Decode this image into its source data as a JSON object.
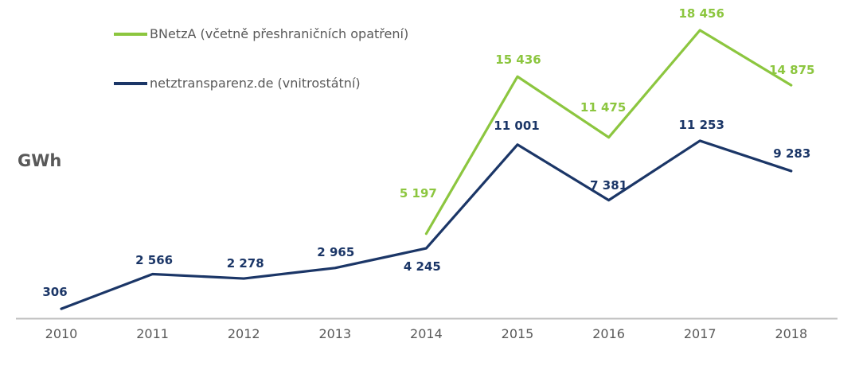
{
  "chart_data": {
    "type": "line",
    "title": "",
    "xlabel": "",
    "ylabel": "GWh",
    "categories": [
      "2010",
      "2011",
      "2012",
      "2013",
      "2014",
      "2015",
      "2016",
      "2017",
      "2018"
    ],
    "series": [
      {
        "key": "bnetza",
        "name": "BNetzA (včetně přeshraničních opatření)",
        "color": "#8CC63F",
        "start_index": 4,
        "values": [
          5197,
          15436,
          11475,
          18456,
          14875
        ],
        "value_labels": [
          "5 197",
          "15 436",
          "11 475",
          "18 456",
          "14 875"
        ]
      },
      {
        "key": "netztransparenz",
        "name": "netztransparenz.de (vnitrostátní)",
        "color": "#1B3667",
        "start_index": 0,
        "values": [
          306,
          2566,
          2278,
          2965,
          4245,
          11001,
          7381,
          11253,
          9283
        ],
        "value_labels": [
          "306",
          "2 566",
          "2 278",
          "2 965",
          "4 245",
          "11 001",
          "7 381",
          "11 253",
          "9 283"
        ]
      }
    ],
    "ylim": [
      0,
      18456
    ],
    "grid": false,
    "legend_position": "top-left",
    "axis_color": "#BFBFBF",
    "text_color": "#595959",
    "label_offsets": [
      [
        [
          -10,
          -58
        ],
        [
          1,
          -28
        ],
        [
          -7,
          -45
        ],
        [
          2,
          -28
        ],
        [
          1,
          -26
        ]
      ],
      [
        [
          -8,
          -28
        ],
        [
          2,
          -25
        ],
        [
          2,
          -26
        ],
        [
          1,
          -27
        ],
        [
          -5,
          16
        ],
        [
          -1,
          -31
        ],
        [
          0,
          -26
        ],
        [
          2,
          -27
        ],
        [
          1,
          -29
        ]
      ]
    ]
  }
}
